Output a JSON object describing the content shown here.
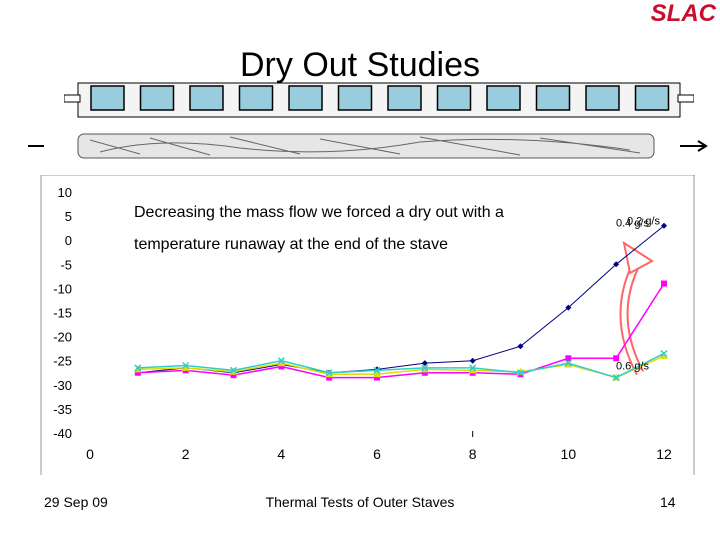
{
  "logo": "SLAC",
  "title": "Dry Out Studies",
  "annotation": {
    "line1": "Decreasing the mass flow we forced a dry out with a",
    "line2": "temperature runaway at the end of the stave"
  },
  "footer": {
    "date": "29 Sep 09",
    "center": "Thermal Tests of Outer Staves",
    "page": "14"
  },
  "chart_data": {
    "type": "line",
    "xlim": [
      0,
      12
    ],
    "ylim": [
      -40,
      10
    ],
    "x_ticks": [
      "0",
      "2",
      "4",
      "6",
      "8",
      "10",
      "12"
    ],
    "y_ticks": [
      "10",
      "5",
      "0",
      "-5",
      "-10",
      "-15",
      "-20",
      "-25",
      "-30",
      "-35",
      "-40"
    ],
    "grid": false,
    "series": [
      {
        "name": "0.2 g/s",
        "color": "#000080",
        "marker": "diamond",
        "x": [
          1,
          2,
          3,
          4,
          5,
          6,
          7,
          8,
          9,
          10,
          11,
          12
        ],
        "y": [
          -27.5,
          -26.5,
          -27.5,
          -25.8,
          -27.5,
          -26.8,
          -25.5,
          -25,
          -22,
          -14,
          -5,
          3
        ]
      },
      {
        "name": "0.4 g/s",
        "color": "#ff00ff",
        "marker": "square",
        "x": [
          1,
          2,
          3,
          4,
          5,
          6,
          7,
          8,
          9,
          10,
          11,
          12
        ],
        "y": [
          -27.5,
          -27,
          -28,
          -26.2,
          -28.5,
          -28.5,
          -27.5,
          -27.5,
          -27.8,
          -24.5,
          -24.5,
          -9
        ]
      },
      {
        "name": "",
        "color": "#dddd00",
        "marker": "triangle",
        "x": [
          1,
          2,
          3,
          4,
          5,
          6,
          7,
          8,
          9,
          10,
          11,
          12
        ],
        "y": [
          -26.8,
          -26.5,
          -27.3,
          -25.5,
          -27.8,
          -27.8,
          -26.8,
          -27,
          -27.3,
          -25.8,
          -28.5,
          -24
        ]
      },
      {
        "name": "0.6 g/s",
        "color": "#33cccc",
        "marker": "x",
        "x": [
          1,
          2,
          3,
          4,
          5,
          6,
          7,
          8,
          9,
          10,
          11,
          12
        ],
        "y": [
          -26.5,
          -26,
          -27,
          -25,
          -27.5,
          -27,
          -26.5,
          -26.5,
          -27.5,
          -25.5,
          -28.5,
          -23.5
        ]
      }
    ],
    "labels": [
      {
        "text": "0.2 g/s",
        "series": 0
      },
      {
        "text": "0.4 g/s",
        "series": 1
      },
      {
        "text": "0.6 g/s",
        "series": 3
      }
    ]
  }
}
